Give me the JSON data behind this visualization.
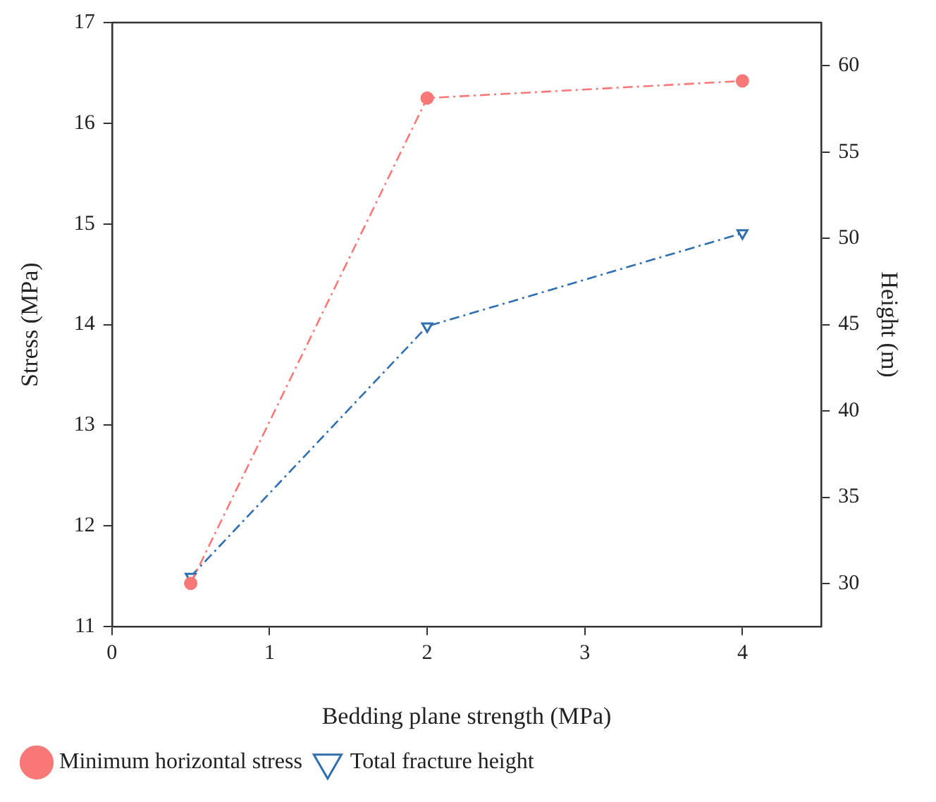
{
  "chart_data": {
    "type": "line",
    "xlabel": "Bedding plane strength (MPa)",
    "ylabel": "Stress (MPa)",
    "y2label": "Height (m)",
    "x": [
      0.5,
      2,
      4
    ],
    "xlim": [
      0,
      4.5
    ],
    "xticks": [
      0,
      1,
      2,
      3,
      4
    ],
    "ylim": [
      11,
      17
    ],
    "yticks": [
      11,
      12,
      13,
      14,
      15,
      16,
      17
    ],
    "y2lim": [
      27.5,
      62.5
    ],
    "y2ticks": [
      30,
      35,
      40,
      45,
      50,
      55,
      60
    ],
    "series": [
      {
        "name": "Minimum horizontal stress",
        "color": "#f87878",
        "values": [
          11.43,
          16.25,
          16.42
        ],
        "marker": "circle",
        "line_style": "dashed"
      },
      {
        "name": "Total fracture height",
        "color": "#2f6fb0",
        "values": [
          30.4,
          44.9,
          50.3
        ],
        "marker": "triangle",
        "line_style": "dashed",
        "axis": "y2"
      }
    ],
    "grid": false,
    "legend": "bottom left"
  }
}
